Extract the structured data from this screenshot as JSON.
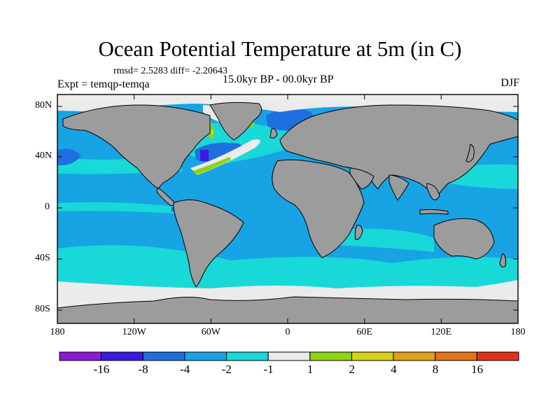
{
  "title": "Ocean Potential Temperature at 5m (in C)",
  "stats": "rmsd= 2.5283  diff= -2.20643",
  "experiment": "Expt = temqp-temqa",
  "period": "15.0kyr BP - 00.0kyr BP",
  "season": "DJF",
  "axes": {
    "lat_labels": [
      "80N",
      "40N",
      "0",
      "40S",
      "80S"
    ],
    "lon_labels": [
      "180",
      "120W",
      "60W",
      "0",
      "60E",
      "120E",
      "180"
    ]
  },
  "colorbar": {
    "labels": [
      "-16",
      "-8",
      "-4",
      "-2",
      "-1",
      "1",
      "2",
      "4",
      "8",
      "16"
    ],
    "colors": [
      "#8a1ad6",
      "#3a1ce0",
      "#1e6fe0",
      "#17a3e4",
      "#18d8d8",
      "#ebebeb",
      "#8fd414",
      "#d6d01a",
      "#dfa117",
      "#e17415",
      "#e2321b"
    ]
  },
  "palette": {
    "land": "#9c9c9c",
    "ocean_default": "#17a3e4",
    "ice": "#ebebeb"
  }
}
